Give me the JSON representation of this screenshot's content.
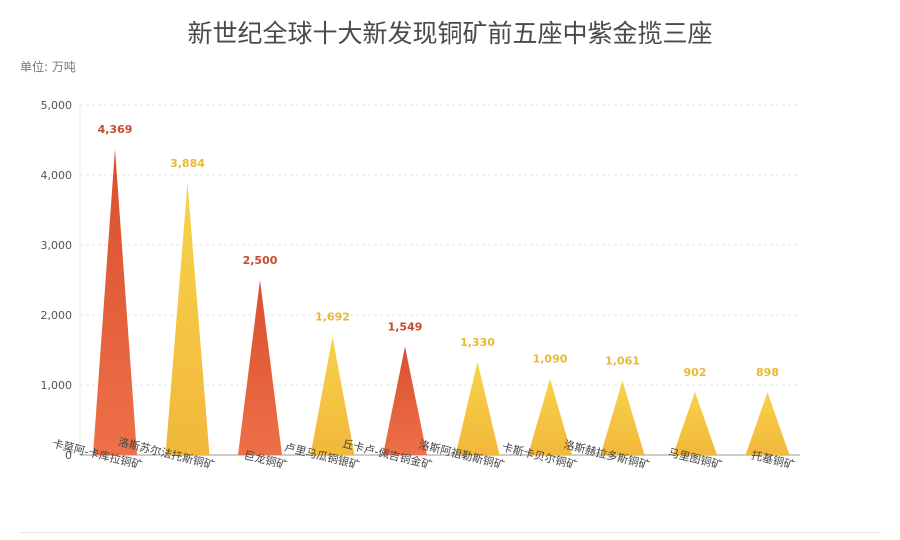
{
  "chart_data": {
    "type": "bar",
    "title": "新世纪全球十大新发现铜矿前五座中紫金揽三座",
    "unit": "单位: 万吨",
    "categories": [
      "卡莫阿-卡库拉铜矿",
      "洛斯苏尔法托斯铜矿",
      "巨龙铜矿",
      "卢里马瓜铜银矿",
      "丘卡卢-佩吉铜金矿",
      "洛斯阿祖勒斯铜矿",
      "卡斯卡贝尔铜矿",
      "洛斯赫拉多斯铜矿",
      "马里图铜矿",
      "托基铜矿"
    ],
    "value_labels": [
      "4,369",
      "3,884",
      "2,500",
      "1,692",
      "1,549",
      "1,330",
      "1,090",
      "1,061",
      "902",
      "898"
    ],
    "values": [
      4369,
      3884,
      2500,
      1692,
      1549,
      1330,
      1090,
      1061,
      902,
      898
    ],
    "highlight": [
      true,
      false,
      true,
      false,
      true,
      false,
      false,
      false,
      false,
      false
    ],
    "ylim": [
      0,
      5000
    ],
    "yticks": [
      0,
      1000,
      2000,
      3000,
      4000,
      5000
    ],
    "ytick_labels": [
      "0",
      "1,000",
      "2,000",
      "3,000",
      "4,000",
      "5,000"
    ],
    "grid": true,
    "bar_shape": "triangle",
    "colors": {
      "highlight": "#e8603c",
      "highlight_label": "#c94a2a",
      "normal": "#f5c242",
      "normal_label": "#e9b930",
      "grid": "#e6e6e6",
      "axis": "#999999"
    }
  }
}
